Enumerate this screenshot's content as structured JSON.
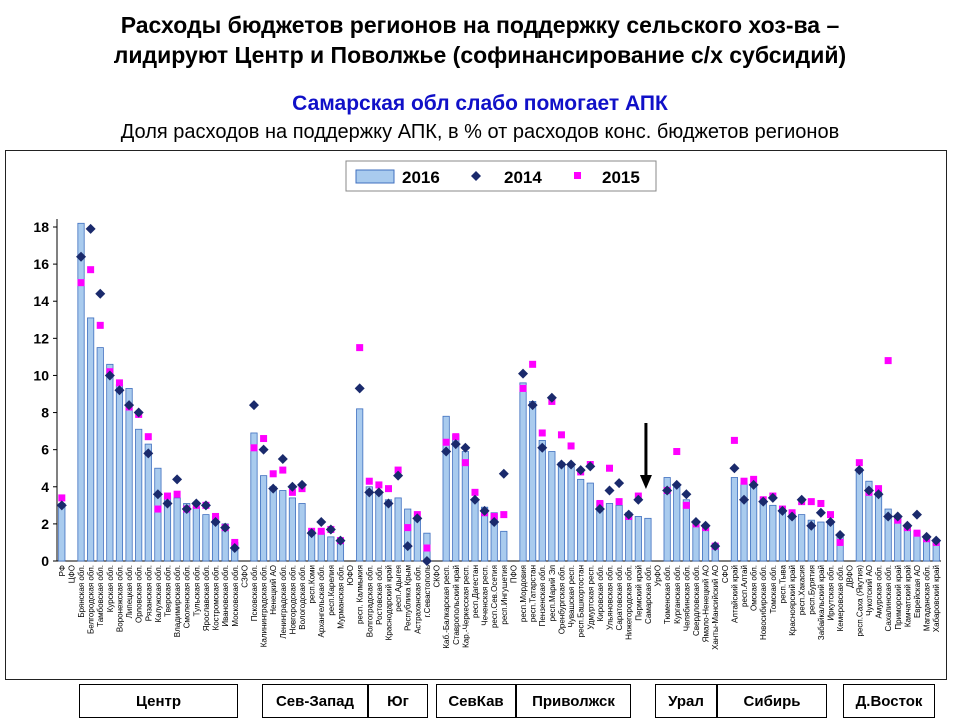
{
  "title_line1": "Расходы бюджетов регионов на поддержку сельского хоз-ва –",
  "title_line2": "лидируют Центр и Поволжье (софинансирование с/х субсидий)",
  "subtitle": "Самарская обл слабо помогает АПК",
  "caption": "Доля расходов на поддержку АПК, в % от расходов конс. бюджетов регионов",
  "regions": [
    "Центр",
    "Сев-Запад",
    "Юг",
    "СевКав",
    "Приволжск",
    "Урал",
    "Сибирь",
    "Д.Восток"
  ],
  "chart_data": {
    "type": "bar",
    "ylim": [
      0,
      18
    ],
    "yticks": [
      0,
      2,
      4,
      6,
      8,
      10,
      12,
      14,
      16,
      18
    ],
    "grid": false,
    "legend_position": "top",
    "colors": {
      "bar": "#a9cbee",
      "bar_edge": "#3f6fbf",
      "s2014": "#1a2a6c",
      "s2015": "#ff00ff"
    },
    "series": [
      {
        "name": "2016",
        "kind": "bar"
      },
      {
        "name": "2014",
        "kind": "diamond"
      },
      {
        "name": "2015",
        "kind": "square"
      }
    ],
    "annotation": "arrow pointing to Самарская обл.",
    "points": [
      {
        "label": "РФ",
        "v2016": 3.1,
        "v2014": 3.0,
        "v2015": 3.4
      },
      {
        "label": "ЦФО",
        "v2016": null,
        "v2014": null,
        "v2015": null
      },
      {
        "label": "Брянская обл.",
        "v2016": 18.2,
        "v2014": 16.4,
        "v2015": 15.0
      },
      {
        "label": "Белгородская обл.",
        "v2016": 13.1,
        "v2014": 17.9,
        "v2015": 15.7
      },
      {
        "label": "Тамбовская обл.",
        "v2016": 11.5,
        "v2014": 14.4,
        "v2015": 12.7
      },
      {
        "label": "Курская обл.",
        "v2016": 10.6,
        "v2014": 10.0,
        "v2015": 10.2
      },
      {
        "label": "Воронежская обл.",
        "v2016": 9.5,
        "v2014": 9.2,
        "v2015": 9.6
      },
      {
        "label": "Липецкая обл.",
        "v2016": 9.3,
        "v2014": 8.4,
        "v2015": 8.3
      },
      {
        "label": "Орловская обл.",
        "v2016": 7.1,
        "v2014": 8.0,
        "v2015": 7.9
      },
      {
        "label": "Рязанская обл.",
        "v2016": 6.3,
        "v2014": 5.8,
        "v2015": 6.7
      },
      {
        "label": "Калужская обл.",
        "v2016": 5.0,
        "v2014": 3.6,
        "v2015": 2.8
      },
      {
        "label": "Тверская обл.",
        "v2016": 3.5,
        "v2014": 3.1,
        "v2015": 3.5
      },
      {
        "label": "Владимирская обл.",
        "v2016": 3.4,
        "v2014": 4.4,
        "v2015": 3.6
      },
      {
        "label": "Смоленская обл.",
        "v2016": 3.1,
        "v2014": 2.8,
        "v2015": 2.8
      },
      {
        "label": "Тульская обл.",
        "v2016": 2.9,
        "v2014": 3.1,
        "v2015": 3.0
      },
      {
        "label": "Ярославская обл.",
        "v2016": 2.5,
        "v2014": 3.0,
        "v2015": 3.0
      },
      {
        "label": "Костромская обл.",
        "v2016": 2.4,
        "v2014": 2.1,
        "v2015": 2.4
      },
      {
        "label": "Ивановская обл.",
        "v2016": 2.0,
        "v2014": 1.8,
        "v2015": 1.8
      },
      {
        "label": "Московская обл.",
        "v2016": 1.0,
        "v2014": 0.7,
        "v2015": 1.0
      },
      {
        "label": "СЗФО",
        "v2016": null,
        "v2014": null,
        "v2015": null
      },
      {
        "label": "Псковская обл.",
        "v2016": 6.9,
        "v2014": 8.4,
        "v2015": 6.1
      },
      {
        "label": "Калининградская обл.",
        "v2016": 4.6,
        "v2014": 6.0,
        "v2015": 6.6
      },
      {
        "label": "Ненецкий АО",
        "v2016": 4.0,
        "v2014": 3.9,
        "v2015": 4.7
      },
      {
        "label": "Ленинградская обл.",
        "v2016": 3.8,
        "v2014": 5.5,
        "v2015": 4.9
      },
      {
        "label": "Новгородская обл.",
        "v2016": 3.4,
        "v2014": 4.0,
        "v2015": 3.7
      },
      {
        "label": "Вологодская обл.",
        "v2016": 3.1,
        "v2014": 4.1,
        "v2015": 3.9
      },
      {
        "label": "респ.Коми",
        "v2016": 1.6,
        "v2014": 1.5,
        "v2015": 1.6
      },
      {
        "label": "Архангельская обл.",
        "v2016": 1.5,
        "v2014": 2.1,
        "v2015": 1.6
      },
      {
        "label": "респ.Карелия",
        "v2016": 1.3,
        "v2014": 1.7,
        "v2015": 1.7
      },
      {
        "label": "Мурманская обл.",
        "v2016": 1.1,
        "v2014": 1.1,
        "v2015": 1.1
      },
      {
        "label": "ЮФО",
        "v2016": null,
        "v2014": null,
        "v2015": null
      },
      {
        "label": "респ. Калмыкия",
        "v2016": 8.2,
        "v2014": 9.3,
        "v2015": 11.5
      },
      {
        "label": "Волгоградская обл.",
        "v2016": 4.0,
        "v2014": 3.7,
        "v2015": 4.3
      },
      {
        "label": "Ростовская обл.",
        "v2016": 3.7,
        "v2014": 3.7,
        "v2015": 4.1
      },
      {
        "label": "Краснодарский край",
        "v2016": 3.3,
        "v2014": 3.1,
        "v2015": 3.9
      },
      {
        "label": "респ.Адыгея",
        "v2016": 3.4,
        "v2014": 4.6,
        "v2015": 4.9
      },
      {
        "label": "Республика Крым",
        "v2016": 2.8,
        "v2014": 0.8,
        "v2015": 1.8
      },
      {
        "label": "Астраханская обл.",
        "v2016": 2.2,
        "v2014": 2.3,
        "v2015": 2.5
      },
      {
        "label": "г.Севастополь",
        "v2016": 1.5,
        "v2014": 0.0,
        "v2015": 0.7
      },
      {
        "label": "СКФО",
        "v2016": null,
        "v2014": null,
        "v2015": null
      },
      {
        "label": "Каб.-Балкарская респ.",
        "v2016": 7.8,
        "v2014": 5.9,
        "v2015": 6.4
      },
      {
        "label": "Ставропольский край",
        "v2016": 6.8,
        "v2014": 6.3,
        "v2015": 6.7
      },
      {
        "label": "Кар.-Черкесская респ.",
        "v2016": 5.9,
        "v2014": 6.1,
        "v2015": 5.3
      },
      {
        "label": "респ.Дагестан",
        "v2016": 3.3,
        "v2014": 3.3,
        "v2015": 3.7
      },
      {
        "label": "Чеченская респ.",
        "v2016": 2.9,
        "v2014": 2.7,
        "v2015": 2.6
      },
      {
        "label": "респ.Сев.Осетия",
        "v2016": 2.6,
        "v2014": 2.1,
        "v2015": 2.4
      },
      {
        "label": "респ.Ингушетия",
        "v2016": 1.6,
        "v2014": 4.7,
        "v2015": 2.5
      },
      {
        "label": "ПФО",
        "v2016": null,
        "v2014": null,
        "v2015": null
      },
      {
        "label": "респ.Мордовия",
        "v2016": 9.6,
        "v2014": 10.1,
        "v2015": 9.3
      },
      {
        "label": "респ.Татарстан",
        "v2016": 8.6,
        "v2014": 8.4,
        "v2015": 10.6
      },
      {
        "label": "Пензенская обл.",
        "v2016": 6.5,
        "v2014": 6.1,
        "v2015": 6.9
      },
      {
        "label": "респ.Марий Эл",
        "v2016": 5.9,
        "v2014": 8.8,
        "v2015": 8.6
      },
      {
        "label": "Оренбургская обл.",
        "v2016": 5.3,
        "v2014": 5.2,
        "v2015": 6.8
      },
      {
        "label": "Чувашская респ.",
        "v2016": 5.1,
        "v2014": 5.2,
        "v2015": 6.2
      },
      {
        "label": "респ.Башкортостан",
        "v2016": 4.4,
        "v2014": 4.9,
        "v2015": 4.8
      },
      {
        "label": "Удмуртская респ.",
        "v2016": 4.2,
        "v2014": 5.1,
        "v2015": 5.2
      },
      {
        "label": "Кировская обл.",
        "v2016": 3.2,
        "v2014": 2.8,
        "v2015": 3.1
      },
      {
        "label": "Ульяновская обл.",
        "v2016": 3.1,
        "v2014": 3.8,
        "v2015": 5.0
      },
      {
        "label": "Саратовская обл.",
        "v2016": 3.0,
        "v2014": 4.2,
        "v2015": 3.2
      },
      {
        "label": "Нижегородская обл.",
        "v2016": 2.6,
        "v2014": 2.5,
        "v2015": 2.4
      },
      {
        "label": "Пермский край",
        "v2016": 2.4,
        "v2014": 3.3,
        "v2015": 3.5
      },
      {
        "label": "Самарская обл.",
        "v2016": 2.3,
        "v2014": null,
        "v2015": null
      },
      {
        "label": "УрФО",
        "v2016": null,
        "v2014": null,
        "v2015": null
      },
      {
        "label": "Тюменская обл.",
        "v2016": 4.5,
        "v2014": 3.8,
        "v2015": 3.8
      },
      {
        "label": "Курганская обл.",
        "v2016": 4.0,
        "v2014": 4.1,
        "v2015": 5.9
      },
      {
        "label": "Челябинская обл.",
        "v2016": 3.3,
        "v2014": 3.6,
        "v2015": 3.0
      },
      {
        "label": "Свердловская обл.",
        "v2016": 2.0,
        "v2014": 2.1,
        "v2015": 2.0
      },
      {
        "label": "Ямало-Ненецкий АО",
        "v2016": 1.8,
        "v2014": 1.9,
        "v2015": 1.8
      },
      {
        "label": "Ханты-Мансийский АО",
        "v2016": 0.9,
        "v2014": 0.8,
        "v2015": 0.8
      },
      {
        "label": "СФО",
        "v2016": null,
        "v2014": null,
        "v2015": null
      },
      {
        "label": "Алтайский край",
        "v2016": 4.5,
        "v2014": 5.0,
        "v2015": 6.5
      },
      {
        "label": "респ.Алтай",
        "v2016": 4.2,
        "v2014": 3.3,
        "v2015": 4.3
      },
      {
        "label": "Омская обл.",
        "v2016": 4.0,
        "v2014": 4.1,
        "v2015": 4.4
      },
      {
        "label": "Новосибирская обл.",
        "v2016": 3.2,
        "v2014": 3.2,
        "v2015": 3.3
      },
      {
        "label": "Томская обл.",
        "v2016": 3.0,
        "v2014": 3.4,
        "v2015": 3.5
      },
      {
        "label": "респ.Тыва",
        "v2016": 2.7,
        "v2014": 2.7,
        "v2015": 2.8
      },
      {
        "label": "Красноярский край",
        "v2016": 2.6,
        "v2014": 2.4,
        "v2015": 2.6
      },
      {
        "label": "респ.Хакасия",
        "v2016": 2.5,
        "v2014": 3.3,
        "v2015": 3.2
      },
      {
        "label": "респ.Бурятия",
        "v2016": 2.2,
        "v2014": 1.9,
        "v2015": 3.2
      },
      {
        "label": "Забайкальский край",
        "v2016": 2.1,
        "v2014": 2.6,
        "v2015": 3.1
      },
      {
        "label": "Иркутская обл.",
        "v2016": 2.0,
        "v2014": 2.1,
        "v2015": 2.5
      },
      {
        "label": "Кемеровская обл.",
        "v2016": 1.3,
        "v2014": 1.4,
        "v2015": 1.0
      },
      {
        "label": "ДВФО",
        "v2016": null,
        "v2014": null,
        "v2015": null
      },
      {
        "label": "респ.Саха (Якутия)",
        "v2016": 5.0,
        "v2014": 4.9,
        "v2015": 5.3
      },
      {
        "label": "Чукотский АО",
        "v2016": 4.3,
        "v2014": 3.8,
        "v2015": 3.7
      },
      {
        "label": "Амурская обл.",
        "v2016": 3.7,
        "v2014": 3.6,
        "v2015": 3.9
      },
      {
        "label": "Сахалинская обл.",
        "v2016": 2.8,
        "v2014": 2.4,
        "v2015": 10.8
      },
      {
        "label": "Приморский край",
        "v2016": 2.4,
        "v2014": 2.4,
        "v2015": 2.2
      },
      {
        "label": "Камчатский край",
        "v2016": 1.9,
        "v2014": 1.9,
        "v2015": 1.8
      },
      {
        "label": "Еврейская АО",
        "v2016": 1.6,
        "v2014": 2.5,
        "v2015": 1.5
      },
      {
        "label": "Магаданская обл.",
        "v2016": 1.2,
        "v2014": 1.3,
        "v2015": 1.2
      },
      {
        "label": "Хабаровский край",
        "v2016": 1.1,
        "v2014": 1.1,
        "v2015": 1.0
      }
    ]
  }
}
